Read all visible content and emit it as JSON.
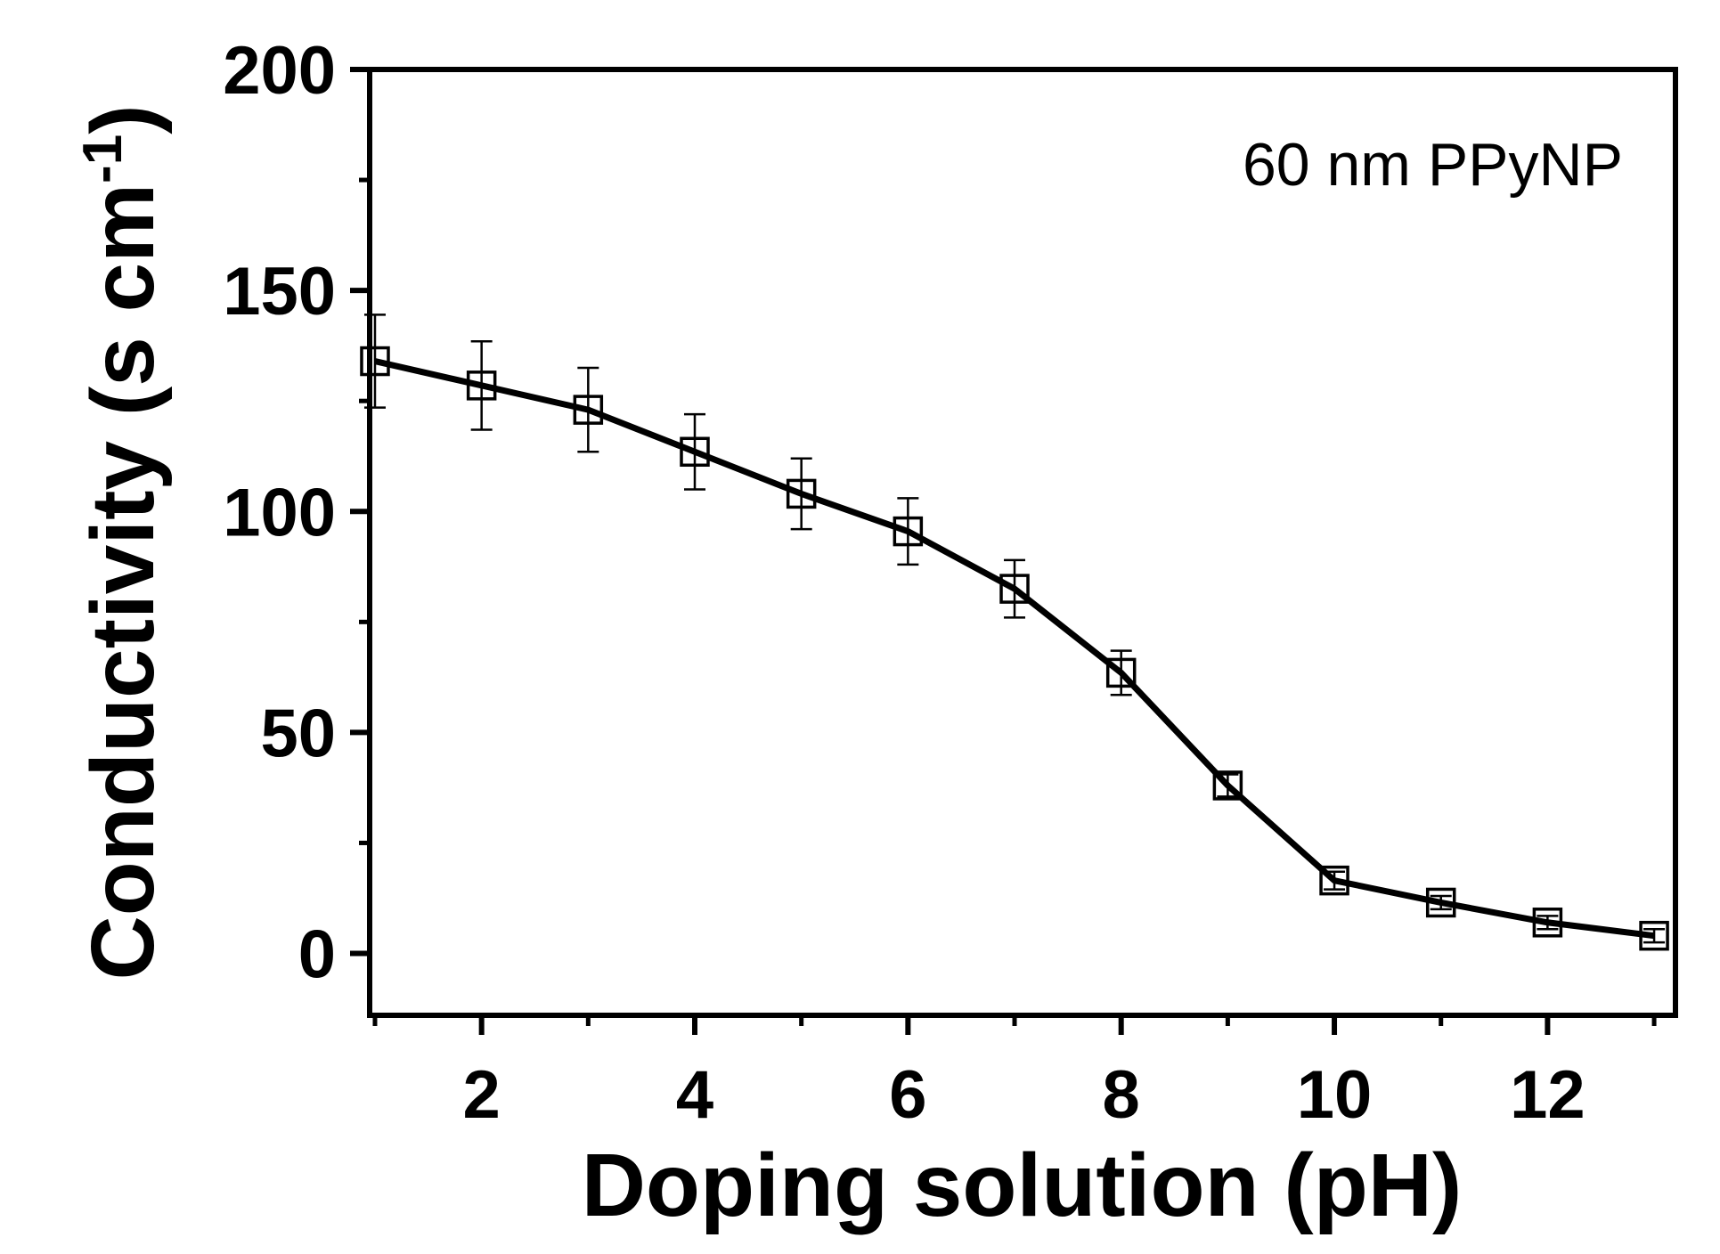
{
  "chart_data": {
    "type": "line",
    "title": "",
    "annotation": "60 nm PPyNP",
    "xlabel": "Doping solution (pH)",
    "ylabel_main": "Conductivity (s cm",
    "ylabel_sup": "-1",
    "ylabel_close": ")",
    "xlim": [
      0.95,
      13.2
    ],
    "ylim": [
      -14,
      200
    ],
    "xticks": [
      2,
      4,
      6,
      8,
      10,
      12
    ],
    "xtick_labels": [
      "2",
      "4",
      "6",
      "8",
      "10",
      "12"
    ],
    "xminor": [
      1,
      3,
      5,
      7,
      9,
      11,
      13
    ],
    "yticks": [
      0,
      50,
      100,
      150,
      200
    ],
    "ytick_labels": [
      "0",
      "50",
      "100",
      "150",
      "200"
    ],
    "yminor": [
      25,
      75,
      125,
      175
    ],
    "grid": false,
    "marker": "open-square",
    "line_color": "#000000",
    "series": [
      {
        "x": [
          1,
          2,
          3,
          4,
          5,
          6,
          7,
          8,
          9,
          10,
          11,
          12,
          13
        ],
        "y": [
          134,
          128.5,
          123,
          113.5,
          104,
          95.5,
          82.5,
          63.5,
          38,
          16.5,
          11.5,
          7,
          4
        ],
        "err": [
          10.5,
          10,
          9.5,
          8.5,
          8,
          7.5,
          6.5,
          5,
          2.5,
          2,
          1.5,
          1.5,
          1.5
        ]
      }
    ]
  }
}
